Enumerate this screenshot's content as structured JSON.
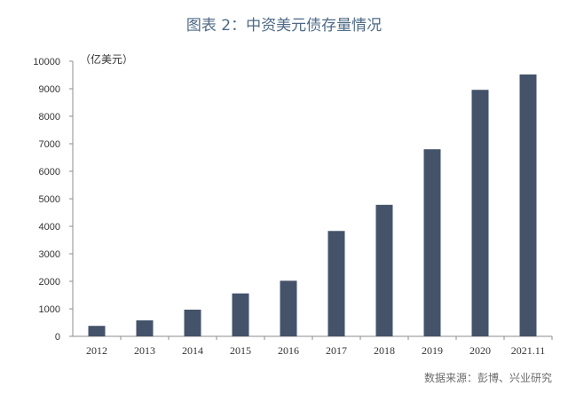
{
  "chart_data": {
    "type": "bar",
    "title": "图表 2：中资美元债存量情况",
    "unit_label": "（亿美元）",
    "categories": [
      "2012",
      "2013",
      "2014",
      "2015",
      "2016",
      "2017",
      "2018",
      "2019",
      "2020",
      "2021.11"
    ],
    "values": [
      380,
      580,
      970,
      1560,
      2020,
      3830,
      4780,
      6800,
      8960,
      9520
    ],
    "ylim": [
      0,
      10000
    ],
    "yticks": [
      0,
      1000,
      2000,
      3000,
      4000,
      5000,
      6000,
      7000,
      8000,
      9000,
      10000
    ],
    "bar_color": "#44536a",
    "grid": false,
    "xlabel": "",
    "ylabel": ""
  },
  "source": "数据来源：彭博、兴业研究"
}
